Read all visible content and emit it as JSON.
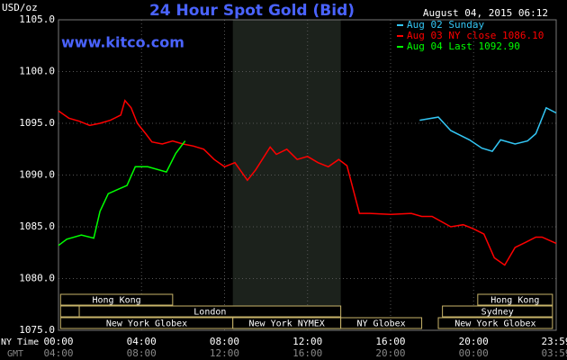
{
  "chart_data": {
    "type": "line",
    "title": "24 Hour Spot Gold (Bid)",
    "timestamp": "August 04, 2015 06:12",
    "source": "www.kitco.com",
    "y_label": "USD/oz",
    "x_label": "NY Time",
    "x2_label": "GMT",
    "xlim": [
      0,
      23.98
    ],
    "ylim": [
      1075,
      1105
    ],
    "xticks": [
      {
        "value": 0,
        "label": "00:00"
      },
      {
        "value": 4,
        "label": "04:00"
      },
      {
        "value": 8,
        "label": "08:00"
      },
      {
        "value": 12,
        "label": "12:00"
      },
      {
        "value": 16,
        "label": "16:00"
      },
      {
        "value": 20,
        "label": "20:00"
      },
      {
        "value": 23.98,
        "label": "23:59"
      }
    ],
    "x2_tick_labels": [
      "04:00",
      "08:00",
      "12:00",
      "16:00",
      "20:00",
      "00:00",
      "03:59"
    ],
    "yticks": [
      {
        "value": 1075,
        "label": "1075.0"
      },
      {
        "value": 1080,
        "label": "1080.0"
      },
      {
        "value": 1085,
        "label": "1085.0"
      },
      {
        "value": 1090,
        "label": "1090.0"
      },
      {
        "value": 1095,
        "label": "1095.0"
      },
      {
        "value": 1100,
        "label": "1100.0"
      },
      {
        "value": 1105,
        "label": "1105.0"
      }
    ],
    "grid": true,
    "shaded_band": [
      8.4,
      13.6
    ],
    "series": [
      {
        "name": "Aug 02 Sunday",
        "color": "#33c6f4",
        "x": [
          17.4,
          18.3,
          18.9,
          19.8,
          20.4,
          20.9,
          21.3,
          22.0,
          22.6,
          23.0,
          23.5,
          23.98
        ],
        "values": [
          1095.3,
          1095.6,
          1094.3,
          1093.4,
          1092.6,
          1092.3,
          1093.4,
          1093.0,
          1093.3,
          1094.0,
          1096.5,
          1096.0
        ]
      },
      {
        "name": "Aug 03 NY close 1086.10",
        "color": "#ff0000",
        "x": [
          0,
          0.5,
          1,
          1.5,
          2,
          2.5,
          3,
          3.2,
          3.5,
          3.8,
          4.2,
          4.5,
          5,
          5.5,
          6,
          6.5,
          7,
          7.5,
          8,
          8.5,
          9.1,
          9.5,
          10.2,
          10.5,
          11,
          11.5,
          12,
          12.5,
          13,
          13.5,
          13.9,
          14.5,
          15,
          16,
          17,
          17.5,
          18,
          18.9,
          19.5,
          20,
          20.5,
          21,
          21.5,
          22,
          22.5,
          23,
          23.3,
          23.98
        ],
        "values": [
          1096.2,
          1095.5,
          1095.2,
          1094.8,
          1095.0,
          1095.3,
          1095.8,
          1097.2,
          1096.5,
          1095.0,
          1094.0,
          1093.2,
          1093.0,
          1093.3,
          1093.0,
          1092.8,
          1092.5,
          1091.5,
          1090.8,
          1091.2,
          1089.5,
          1090.5,
          1092.7,
          1092.0,
          1092.5,
          1091.5,
          1091.8,
          1091.2,
          1090.8,
          1091.5,
          1090.9,
          1086.3,
          1086.3,
          1086.2,
          1086.3,
          1086.0,
          1086.0,
          1085.0,
          1085.2,
          1084.8,
          1084.3,
          1082.0,
          1081.3,
          1083.0,
          1083.5,
          1084.0,
          1084.0,
          1083.4
        ]
      },
      {
        "name": "Aug 04 Last 1092.90",
        "color": "#00ff00",
        "x": [
          0,
          0.4,
          1.1,
          1.7,
          2.0,
          2.4,
          3.3,
          3.7,
          4.3,
          5.2,
          5.65,
          6.1
        ],
        "values": [
          1083.2,
          1083.8,
          1084.2,
          1083.9,
          1086.5,
          1088.2,
          1089.0,
          1090.8,
          1090.8,
          1090.3,
          1092.1,
          1093.3
        ]
      }
    ],
    "session_rows": [
      [
        {
          "label": "Hong Kong",
          "start": 0.1,
          "end": 5.5
        },
        {
          "label": "Hong Kong",
          "start": 20.2,
          "end": 23.8
        }
      ],
      [
        {
          "label": null,
          "start": 0.1,
          "end": 1.0
        },
        {
          "label": "London",
          "start": 1.0,
          "end": 13.6
        },
        {
          "label": "Sydney",
          "start": 18.5,
          "end": 23.8
        }
      ],
      [
        {
          "label": "New York Globex",
          "start": 0.1,
          "end": 8.4
        },
        {
          "label": "New York NYMEX",
          "start": 8.4,
          "end": 13.6
        },
        {
          "label": "NY Globex",
          "start": 13.6,
          "end": 17.5
        },
        {
          "label": "New York Globex",
          "start": 18.3,
          "end": 23.8
        }
      ]
    ]
  }
}
